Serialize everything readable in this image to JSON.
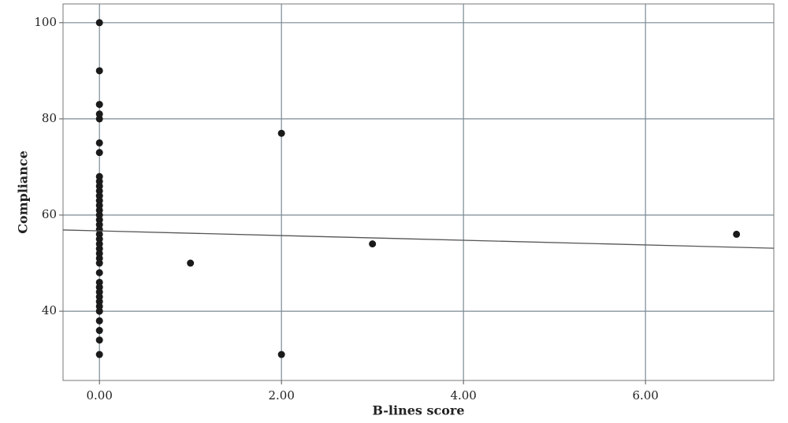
{
  "chart_data": {
    "type": "scatter",
    "x_label": "B-lines score",
    "y_label": "Compliance",
    "x": [
      0,
      0,
      0,
      0,
      0,
      0,
      0,
      0,
      0,
      0,
      0,
      0,
      0,
      0,
      0,
      0,
      0,
      0,
      0,
      0,
      0,
      0,
      0,
      0,
      0,
      0,
      0,
      0,
      0,
      0,
      0,
      0,
      0,
      0,
      0,
      0,
      0,
      0,
      1,
      2,
      2,
      3,
      7
    ],
    "values": [
      100,
      90,
      83,
      81,
      80,
      75,
      73,
      68,
      67,
      66,
      65,
      64,
      63,
      62,
      61,
      60,
      59,
      58,
      57,
      56,
      55,
      54,
      53,
      52,
      51,
      50,
      48,
      46,
      45,
      44,
      43,
      42,
      41,
      40,
      38,
      36,
      34,
      31,
      50,
      77,
      31,
      54,
      56
    ],
    "color": "#1a1a1a",
    "fit_line": {
      "x": [
        -0.4,
        7.41
      ],
      "y": [
        56.9,
        53.1
      ],
      "color": "#555"
    },
    "xlim": [
      -0.4,
      7.41
    ],
    "ylim": [
      25.6,
      103.9
    ],
    "xticks": [
      {
        "value": 0,
        "label": "0.00"
      },
      {
        "value": 2,
        "label": "2.00"
      },
      {
        "value": 4,
        "label": "4.00"
      },
      {
        "value": 6,
        "label": "6.00"
      }
    ],
    "yticks": [
      40,
      60,
      80,
      100
    ],
    "grid": true
  }
}
